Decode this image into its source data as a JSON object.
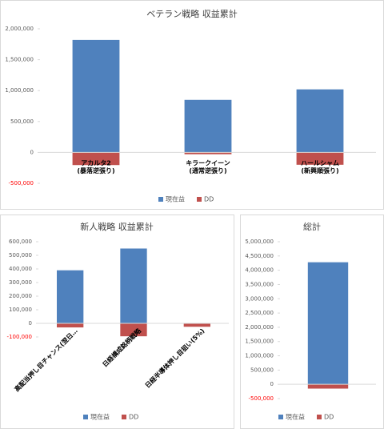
{
  "chart_data": [
    {
      "type": "bar",
      "title": "ベテラン戦略 収益累計",
      "categories": [
        "アカルタ2\n(暴落逆張り)",
        "キラークイーン\n(通常逆張り)",
        "ハールシャム\n(新興順張り)"
      ],
      "series": [
        {
          "name": "現在益",
          "color": "#4f81bd",
          "values": [
            1820000,
            850000,
            1020000
          ]
        },
        {
          "name": "DD",
          "color": "#c0504d",
          "values": [
            -205000,
            -30000,
            -200000
          ]
        }
      ],
      "ylim": [
        -500000,
        2000000
      ],
      "yticks": [
        {
          "value": -500000,
          "label": "-500,000"
        },
        0,
        {
          "value": 500000,
          "label": "500,000"
        },
        {
          "value": 1000000,
          "label": "1,000,000"
        },
        {
          "value": 1500000,
          "label": "1,500,000"
        },
        {
          "value": 2000000,
          "label": "2,000,000"
        }
      ],
      "negative_tick_color": "#ff0000",
      "grid": false,
      "legend": "bottom",
      "label_rotation": 0
    },
    {
      "type": "bar",
      "title": "新人戦略 収益累計",
      "categories": [
        "高配当押し目チャンス(翌日…",
        "日経構成銘柄戦略",
        "日経半導体押し目狙い(5%)"
      ],
      "series": [
        {
          "name": "現在益",
          "color": "#4f81bd",
          "values": [
            390000,
            550000,
            0
          ]
        },
        {
          "name": "DD",
          "color": "#c0504d",
          "values": [
            -30000,
            -95000,
            -25000
          ]
        }
      ],
      "ylim": [
        -100000,
        600000
      ],
      "yticks": [
        {
          "value": -100000,
          "label": "-100,000"
        },
        0,
        {
          "value": 100000,
          "label": "100,000"
        },
        {
          "value": 200000,
          "label": "200,000"
        },
        {
          "value": 300000,
          "label": "300,000"
        },
        {
          "value": 400000,
          "label": "400,000"
        },
        {
          "value": 500000,
          "label": "500,000"
        },
        {
          "value": 600000,
          "label": "600,000"
        }
      ],
      "negative_tick_color": "#ff0000",
      "grid": false,
      "legend": "bottom",
      "label_rotation": -45
    },
    {
      "type": "bar",
      "title": "総計",
      "categories": [
        null
      ],
      "series": [
        {
          "name": "現在益",
          "color": "#4f81bd",
          "values": [
            4280000
          ]
        },
        {
          "name": "DD",
          "color": "#c0504d",
          "values": [
            -150000
          ]
        }
      ],
      "ylim": [
        -500000,
        5000000
      ],
      "yticks": [
        {
          "value": -500000,
          "label": "-500,000"
        },
        0,
        {
          "value": 500000,
          "label": "500,000"
        },
        {
          "value": 1000000,
          "label": "1,000,000"
        },
        {
          "value": 1500000,
          "label": "1,500,000"
        },
        {
          "value": 2000000,
          "label": "2,000,000"
        },
        {
          "value": 2500000,
          "label": "2,500,000"
        },
        {
          "value": 3000000,
          "label": "3,000,000"
        },
        {
          "value": 3500000,
          "label": "3,500,000"
        },
        {
          "value": 4000000,
          "label": "4,000,000"
        },
        {
          "value": 4500000,
          "label": "4,500,000"
        },
        {
          "value": 5000000,
          "label": "5,000,000"
        }
      ],
      "negative_tick_color": "#ff0000",
      "grid": false,
      "legend": "bottom",
      "label_rotation": 0
    }
  ]
}
